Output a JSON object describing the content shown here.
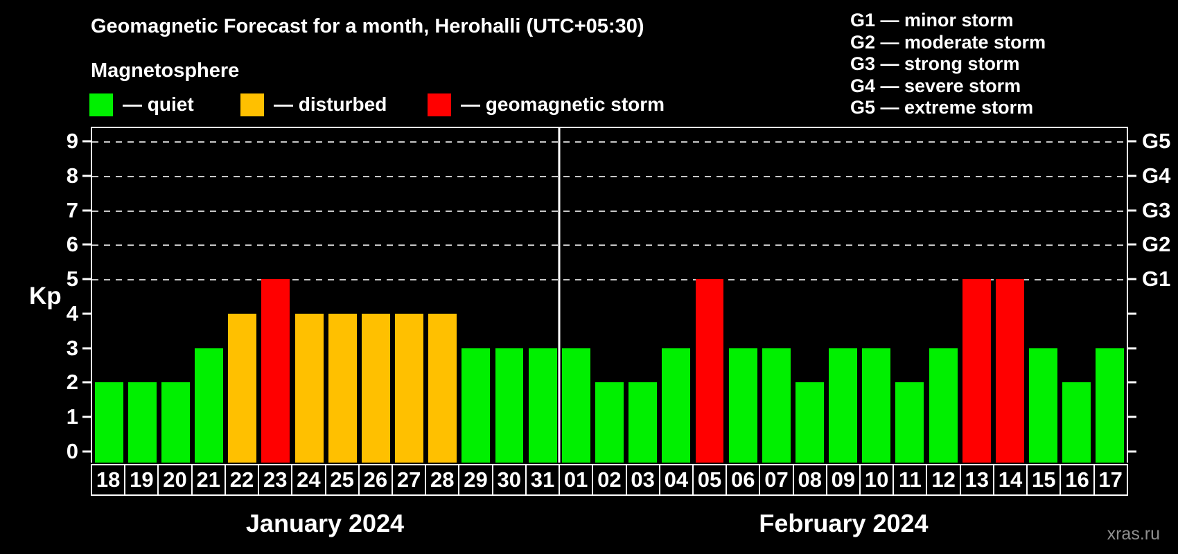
{
  "title": "Geomagnetic Forecast for a month, Herohalli (UTC+05:30)",
  "subtitle": "Magnetosphere",
  "legend": {
    "items": [
      {
        "key": "quiet",
        "label": "— quiet",
        "color": "#00f000",
        "x": 129
      },
      {
        "key": "disturbed",
        "label": "— disturbed",
        "color": "#ffc000",
        "x": 347
      },
      {
        "key": "storm",
        "label": "— geomagnetic storm",
        "color": "#ff0000",
        "x": 617
      }
    ]
  },
  "g_scale_legend": [
    "G1 — minor storm",
    "G2 — moderate storm",
    "G3 — strong storm",
    "G4 — severe storm",
    "G5 — extreme storm"
  ],
  "axes": {
    "y_label": "Kp",
    "y_ticks": [
      9,
      8,
      7,
      6,
      5,
      4,
      3,
      2,
      1,
      0
    ],
    "right_ticks": [
      9,
      8,
      7,
      6,
      5,
      4,
      3,
      2,
      1,
      0
    ],
    "right_labels": [
      {
        "kp": 9,
        "text": "G5"
      },
      {
        "kp": 8,
        "text": "G4"
      },
      {
        "kp": 7,
        "text": "G3"
      },
      {
        "kp": 6,
        "text": "G2"
      },
      {
        "kp": 5,
        "text": "G1"
      }
    ],
    "gridlines_at": [
      9,
      8,
      7,
      6,
      5
    ]
  },
  "months": [
    {
      "label": "January 2024",
      "days": [
        "18",
        "19",
        "20",
        "21",
        "22",
        "23",
        "24",
        "25",
        "26",
        "27",
        "28",
        "29",
        "30",
        "31"
      ]
    },
    {
      "label": "February 2024",
      "days": [
        "01",
        "02",
        "03",
        "04",
        "05",
        "06",
        "07",
        "08",
        "09",
        "10",
        "11",
        "12",
        "13",
        "14",
        "15",
        "16",
        "17"
      ]
    }
  ],
  "status_colors": {
    "quiet": "#00f000",
    "disturbed": "#ffc000",
    "storm": "#ff0000"
  },
  "watermark": "xras.ru",
  "chart_data": {
    "type": "bar",
    "title": "Geomagnetic Forecast for a month, Herohalli (UTC+05:30)",
    "xlabel": "",
    "ylabel": "Kp",
    "ylim": [
      0,
      9
    ],
    "grid": "dashed horizontal lines at Kp 5-9 (G1-G5 levels)",
    "legend_position": "top-left",
    "categories": [
      "18",
      "19",
      "20",
      "21",
      "22",
      "23",
      "24",
      "25",
      "26",
      "27",
      "28",
      "29",
      "30",
      "31",
      "01",
      "02",
      "03",
      "04",
      "05",
      "06",
      "07",
      "08",
      "09",
      "10",
      "11",
      "12",
      "13",
      "14",
      "15",
      "16",
      "17"
    ],
    "values": [
      2,
      2,
      2,
      3,
      4,
      5,
      4,
      4,
      4,
      4,
      4,
      3,
      3,
      3,
      3,
      2,
      2,
      3,
      5,
      3,
      3,
      2,
      3,
      3,
      2,
      3,
      5,
      5,
      3,
      2,
      3
    ],
    "statuses": [
      "quiet",
      "quiet",
      "quiet",
      "quiet",
      "disturbed",
      "storm",
      "disturbed",
      "disturbed",
      "disturbed",
      "disturbed",
      "disturbed",
      "quiet",
      "quiet",
      "quiet",
      "quiet",
      "quiet",
      "quiet",
      "quiet",
      "storm",
      "quiet",
      "quiet",
      "quiet",
      "quiet",
      "quiet",
      "quiet",
      "quiet",
      "storm",
      "storm",
      "quiet",
      "quiet",
      "quiet"
    ],
    "month_split_index": 14
  }
}
